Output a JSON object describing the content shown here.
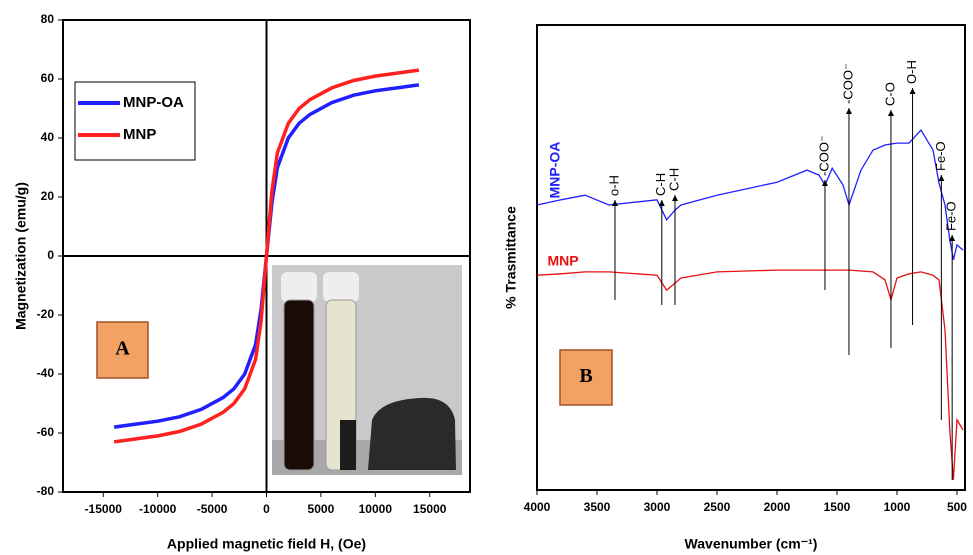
{
  "chart_data": [
    {
      "type": "line",
      "xlabel": "Applied magnetic field H, (Oe)",
      "ylabel": "Magnetization (emu/g)",
      "annotation": "A",
      "x": [
        -14000,
        -12000,
        -10000,
        -8000,
        -6000,
        -4000,
        -3000,
        -2000,
        -1000,
        -500,
        0,
        500,
        1000,
        2000,
        3000,
        4000,
        6000,
        8000,
        10000,
        12000,
        14000
      ],
      "series": [
        {
          "name": "MNP-OA",
          "color": "#1f1fff",
          "values": [
            -58,
            -57,
            -56,
            -54.5,
            -52,
            -48,
            -45,
            -40,
            -30,
            -18,
            0,
            18,
            30,
            40,
            45,
            48,
            52,
            54.5,
            56,
            57,
            58
          ]
        },
        {
          "name": "MNP",
          "color": "#ff2020",
          "values": [
            -63,
            -62,
            -61,
            -59.5,
            -57,
            -53,
            -50,
            -45,
            -35,
            -22,
            0,
            22,
            35,
            45,
            50,
            53,
            57,
            59.5,
            61,
            62,
            63
          ]
        }
      ],
      "xlim": [
        -18700,
        18700
      ],
      "xticks": [
        -15000,
        -10000,
        -5000,
        0,
        5000,
        10000,
        15000
      ],
      "ylim": [
        -80,
        80
      ],
      "yticks": [
        -80,
        -60,
        -40,
        -20,
        0,
        20,
        40,
        60,
        80
      ]
    },
    {
      "type": "line",
      "xlabel": "Wavenumber (cm⁻¹)",
      "ylabel": "% Trasmittance",
      "annotation": "B",
      "x": [
        4000,
        3800,
        3600,
        3400,
        3000,
        2920,
        2850,
        2800,
        2500,
        2000,
        1750,
        1650,
        1600,
        1540,
        1450,
        1400,
        1300,
        1200,
        1100,
        1050,
        1000,
        900,
        800,
        700,
        650,
        600,
        560,
        530,
        500,
        450
      ],
      "series": [
        {
          "name": "MNP-OA",
          "color": "#2020ff",
          "values": [
            61.3,
            62.4,
            63.4,
            61.3,
            62.4,
            58.1,
            60.2,
            61.3,
            63.4,
            66.2,
            68.8,
            67.7,
            65.6,
            69.2,
            65.6,
            61.3,
            68.8,
            73.1,
            74.2,
            74.4,
            74.6,
            74.6,
            77.4,
            73.1,
            66,
            61.3,
            53.8,
            49.5,
            52.7,
            51.6
          ]
        },
        {
          "name": "MNP",
          "color": "#e81010",
          "values": [
            46.2,
            46.5,
            46.9,
            46.9,
            46.2,
            43.0,
            44.5,
            45.6,
            46.9,
            47.3,
            47.3,
            47.3,
            47.3,
            47.3,
            47.3,
            47.3,
            47.1,
            46.9,
            45.2,
            40.9,
            45.6,
            46.5,
            46.9,
            46.2,
            45.2,
            34.4,
            12.9,
            2.2,
            15.1,
            12.9
          ]
        }
      ],
      "xlim": [
        4000,
        433
      ],
      "xticks": [
        4000,
        3500,
        3000,
        2500,
        2000,
        1500,
        1000,
        500
      ],
      "ylim": [
        0,
        100
      ],
      "peaks": [
        {
          "text": "o-H",
          "x": 3350
        },
        {
          "text": "C-H",
          "x": 2960
        },
        {
          "text": "C-H",
          "x": 2850
        },
        {
          "text": "-COO⁻",
          "x": 1600
        },
        {
          "text": "-COO⁻",
          "x": 1400
        },
        {
          "text": "C-O",
          "x": 1050
        },
        {
          "text": "O-H",
          "x": 870
        },
        {
          "text": "Fe-O",
          "x": 630
        },
        {
          "text": "Fe-O",
          "x": 540
        }
      ]
    }
  ]
}
